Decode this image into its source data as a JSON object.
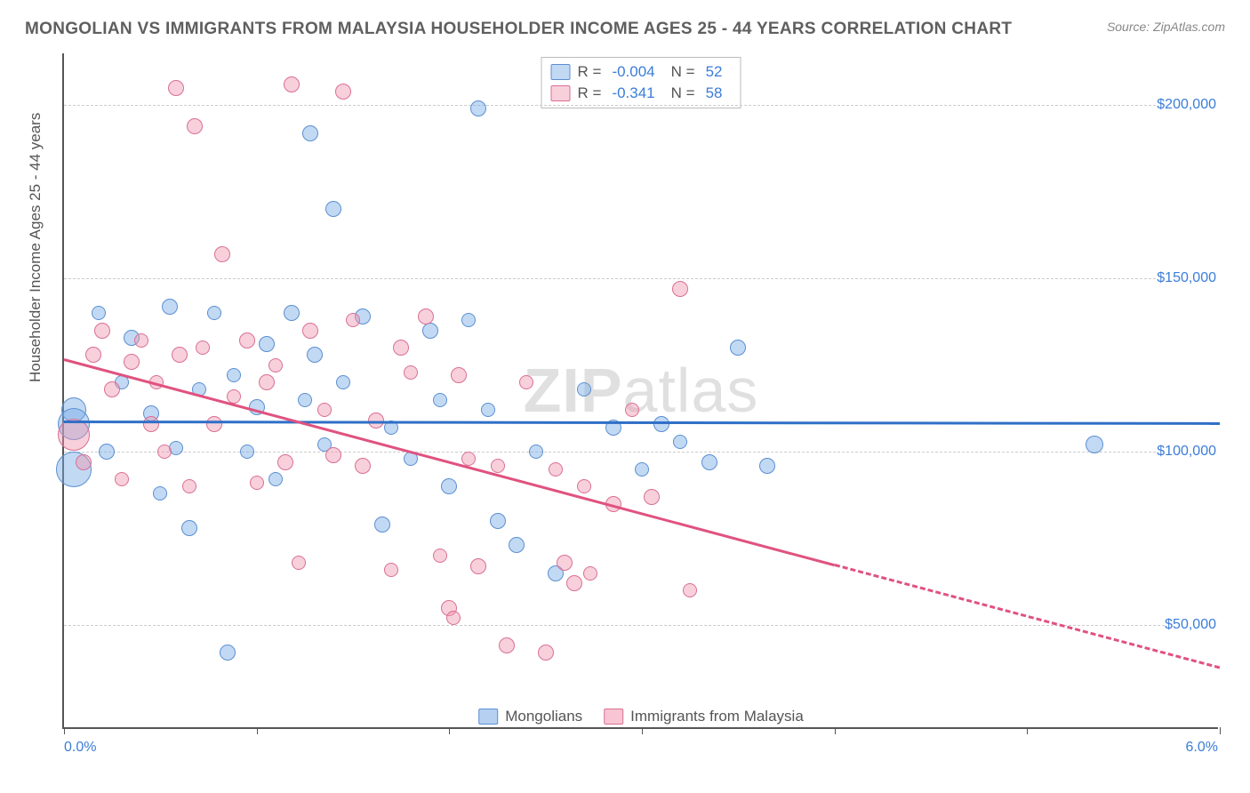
{
  "title": "MONGOLIAN VS IMMIGRANTS FROM MALAYSIA HOUSEHOLDER INCOME AGES 25 - 44 YEARS CORRELATION CHART",
  "source": "Source: ZipAtlas.com",
  "watermark_bold": "ZIP",
  "watermark_rest": "atlas",
  "ylabel": "Householder Income Ages 25 - 44 years",
  "chart": {
    "type": "scatter",
    "xlim": [
      0,
      6
    ],
    "ylim": [
      20000,
      215000
    ],
    "y_gridlines": [
      50000,
      100000,
      150000,
      200000
    ],
    "y_tick_labels": [
      "$50,000",
      "$100,000",
      "$150,000",
      "$200,000"
    ],
    "x_ticks": [
      0,
      1,
      2,
      3,
      4,
      5,
      6
    ],
    "x_left_label": "0.0%",
    "x_right_label": "6.0%",
    "background_color": "#ffffff",
    "grid_color": "#cccccc",
    "axis_color": "#555555",
    "label_color": "#3b7dd8",
    "series": [
      {
        "name": "Mongolians",
        "fill": "rgba(120,170,230,0.45)",
        "stroke": "#5a8fd0",
        "trend_color": "#2f6fc7",
        "R": "-0.004",
        "N": "52",
        "trend": {
          "x1": 0.0,
          "y1": 109000,
          "x2": 6.0,
          "y2": 108500,
          "solid_until": 5.95
        },
        "points": [
          {
            "x": 0.05,
            "y": 112000,
            "r": 14
          },
          {
            "x": 0.05,
            "y": 108000,
            "r": 18
          },
          {
            "x": 0.05,
            "y": 95000,
            "r": 20
          },
          {
            "x": 0.18,
            "y": 140000,
            "r": 8
          },
          {
            "x": 0.22,
            "y": 100000,
            "r": 9
          },
          {
            "x": 0.3,
            "y": 120000,
            "r": 8
          },
          {
            "x": 0.35,
            "y": 133000,
            "r": 9
          },
          {
            "x": 0.45,
            "y": 111000,
            "r": 9
          },
          {
            "x": 0.5,
            "y": 88000,
            "r": 8
          },
          {
            "x": 0.55,
            "y": 142000,
            "r": 9
          },
          {
            "x": 0.58,
            "y": 101000,
            "r": 8
          },
          {
            "x": 0.65,
            "y": 78000,
            "r": 9
          },
          {
            "x": 0.7,
            "y": 118000,
            "r": 8
          },
          {
            "x": 0.78,
            "y": 140000,
            "r": 8
          },
          {
            "x": 0.85,
            "y": 42000,
            "r": 9
          },
          {
            "x": 0.88,
            "y": 122000,
            "r": 8
          },
          {
            "x": 0.95,
            "y": 100000,
            "r": 8
          },
          {
            "x": 1.0,
            "y": 113000,
            "r": 9
          },
          {
            "x": 1.05,
            "y": 131000,
            "r": 9
          },
          {
            "x": 1.1,
            "y": 92000,
            "r": 8
          },
          {
            "x": 1.18,
            "y": 140000,
            "r": 9
          },
          {
            "x": 1.25,
            "y": 115000,
            "r": 8
          },
          {
            "x": 1.28,
            "y": 192000,
            "r": 9
          },
          {
            "x": 1.3,
            "y": 128000,
            "r": 9
          },
          {
            "x": 1.35,
            "y": 102000,
            "r": 8
          },
          {
            "x": 1.4,
            "y": 170000,
            "r": 9
          },
          {
            "x": 1.45,
            "y": 120000,
            "r": 8
          },
          {
            "x": 1.55,
            "y": 139000,
            "r": 9
          },
          {
            "x": 1.65,
            "y": 79000,
            "r": 9
          },
          {
            "x": 1.7,
            "y": 107000,
            "r": 8
          },
          {
            "x": 1.8,
            "y": 98000,
            "r": 8
          },
          {
            "x": 1.9,
            "y": 135000,
            "r": 9
          },
          {
            "x": 1.95,
            "y": 115000,
            "r": 8
          },
          {
            "x": 2.0,
            "y": 90000,
            "r": 9
          },
          {
            "x": 2.1,
            "y": 138000,
            "r": 8
          },
          {
            "x": 2.15,
            "y": 199000,
            "r": 9
          },
          {
            "x": 2.2,
            "y": 112000,
            "r": 8
          },
          {
            "x": 2.25,
            "y": 80000,
            "r": 9
          },
          {
            "x": 2.35,
            "y": 73000,
            "r": 9
          },
          {
            "x": 2.45,
            "y": 100000,
            "r": 8
          },
          {
            "x": 2.55,
            "y": 65000,
            "r": 9
          },
          {
            "x": 2.7,
            "y": 118000,
            "r": 8
          },
          {
            "x": 2.85,
            "y": 107000,
            "r": 9
          },
          {
            "x": 3.0,
            "y": 95000,
            "r": 8
          },
          {
            "x": 3.1,
            "y": 108000,
            "r": 9
          },
          {
            "x": 3.2,
            "y": 103000,
            "r": 8
          },
          {
            "x": 3.35,
            "y": 97000,
            "r": 9
          },
          {
            "x": 3.5,
            "y": 130000,
            "r": 9
          },
          {
            "x": 3.65,
            "y": 96000,
            "r": 9
          },
          {
            "x": 5.35,
            "y": 102000,
            "r": 10
          }
        ]
      },
      {
        "name": "Immigrants from Malaysia",
        "fill": "rgba(240,150,175,0.45)",
        "stroke": "#d96f93",
        "trend_color": "#e0527f",
        "R": "-0.341",
        "N": "58",
        "trend": {
          "x1": 0.0,
          "y1": 127000,
          "x2": 6.0,
          "y2": 38000,
          "solid_until": 4.0
        },
        "points": [
          {
            "x": 0.05,
            "y": 105000,
            "r": 18
          },
          {
            "x": 0.1,
            "y": 97000,
            "r": 9
          },
          {
            "x": 0.15,
            "y": 128000,
            "r": 9
          },
          {
            "x": 0.2,
            "y": 135000,
            "r": 9
          },
          {
            "x": 0.25,
            "y": 118000,
            "r": 9
          },
          {
            "x": 0.3,
            "y": 92000,
            "r": 8
          },
          {
            "x": 0.35,
            "y": 126000,
            "r": 9
          },
          {
            "x": 0.4,
            "y": 132000,
            "r": 8
          },
          {
            "x": 0.45,
            "y": 108000,
            "r": 9
          },
          {
            "x": 0.48,
            "y": 120000,
            "r": 8
          },
          {
            "x": 0.52,
            "y": 100000,
            "r": 8
          },
          {
            "x": 0.58,
            "y": 205000,
            "r": 9
          },
          {
            "x": 0.6,
            "y": 128000,
            "r": 9
          },
          {
            "x": 0.65,
            "y": 90000,
            "r": 8
          },
          {
            "x": 0.68,
            "y": 194000,
            "r": 9
          },
          {
            "x": 0.72,
            "y": 130000,
            "r": 8
          },
          {
            "x": 0.78,
            "y": 108000,
            "r": 9
          },
          {
            "x": 0.82,
            "y": 157000,
            "r": 9
          },
          {
            "x": 0.88,
            "y": 116000,
            "r": 8
          },
          {
            "x": 0.95,
            "y": 132000,
            "r": 9
          },
          {
            "x": 1.0,
            "y": 91000,
            "r": 8
          },
          {
            "x": 1.05,
            "y": 120000,
            "r": 9
          },
          {
            "x": 1.1,
            "y": 125000,
            "r": 8
          },
          {
            "x": 1.15,
            "y": 97000,
            "r": 9
          },
          {
            "x": 1.18,
            "y": 206000,
            "r": 9
          },
          {
            "x": 1.22,
            "y": 68000,
            "r": 8
          },
          {
            "x": 1.28,
            "y": 135000,
            "r": 9
          },
          {
            "x": 1.35,
            "y": 112000,
            "r": 8
          },
          {
            "x": 1.4,
            "y": 99000,
            "r": 9
          },
          {
            "x": 1.45,
            "y": 204000,
            "r": 9
          },
          {
            "x": 1.5,
            "y": 138000,
            "r": 8
          },
          {
            "x": 1.55,
            "y": 96000,
            "r": 9
          },
          {
            "x": 1.62,
            "y": 109000,
            "r": 9
          },
          {
            "x": 1.7,
            "y": 66000,
            "r": 8
          },
          {
            "x": 1.75,
            "y": 130000,
            "r": 9
          },
          {
            "x": 1.8,
            "y": 123000,
            "r": 8
          },
          {
            "x": 1.88,
            "y": 139000,
            "r": 9
          },
          {
            "x": 1.95,
            "y": 70000,
            "r": 8
          },
          {
            "x": 2.0,
            "y": 55000,
            "r": 9
          },
          {
            "x": 2.02,
            "y": 52000,
            "r": 8
          },
          {
            "x": 2.05,
            "y": 122000,
            "r": 9
          },
          {
            "x": 2.1,
            "y": 98000,
            "r": 8
          },
          {
            "x": 2.15,
            "y": 67000,
            "r": 9
          },
          {
            "x": 2.25,
            "y": 96000,
            "r": 8
          },
          {
            "x": 2.3,
            "y": 44000,
            "r": 9
          },
          {
            "x": 2.4,
            "y": 120000,
            "r": 8
          },
          {
            "x": 2.5,
            "y": 42000,
            "r": 9
          },
          {
            "x": 2.55,
            "y": 95000,
            "r": 8
          },
          {
            "x": 2.65,
            "y": 62000,
            "r": 9
          },
          {
            "x": 2.7,
            "y": 90000,
            "r": 8
          },
          {
            "x": 2.85,
            "y": 85000,
            "r": 9
          },
          {
            "x": 2.95,
            "y": 112000,
            "r": 8
          },
          {
            "x": 3.05,
            "y": 87000,
            "r": 9
          },
          {
            "x": 3.2,
            "y": 147000,
            "r": 9
          },
          {
            "x": 3.25,
            "y": 60000,
            "r": 8
          },
          {
            "x": 2.6,
            "y": 68000,
            "r": 9
          },
          {
            "x": 2.73,
            "y": 65000,
            "r": 8
          }
        ]
      }
    ]
  },
  "legend_top": {
    "r_label": "R =",
    "n_label": "N ="
  },
  "legend_bottom": [
    {
      "swatch_fill": "rgba(120,170,230,0.55)",
      "swatch_stroke": "#5a8fd0",
      "label": "Mongolians"
    },
    {
      "swatch_fill": "rgba(240,150,175,0.55)",
      "swatch_stroke": "#d96f93",
      "label": "Immigrants from Malaysia"
    }
  ]
}
